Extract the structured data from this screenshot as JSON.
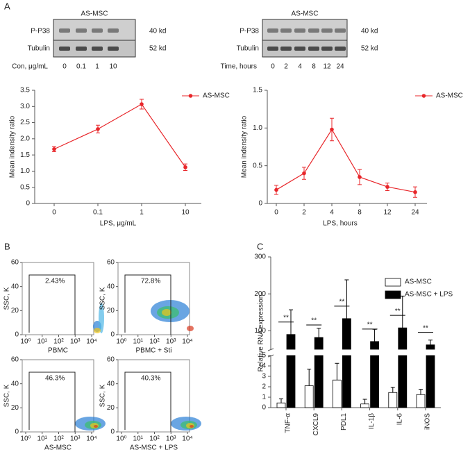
{
  "panel_labels": [
    "A",
    "B",
    "C"
  ],
  "blots": [
    {
      "title": "AS-MSC",
      "rows": [
        "P-P38",
        "Tubulin"
      ],
      "sizes": [
        "40 kd",
        "52 kd"
      ],
      "lane_title": "Con, μg/mL",
      "lanes": [
        "0",
        "0.1",
        "1",
        "10"
      ]
    },
    {
      "title": "AS-MSC",
      "rows": [
        "P-P38",
        "Tubulin"
      ],
      "sizes": [
        "40 kd",
        "52 kd"
      ],
      "lane_title": "Time, hours",
      "lanes": [
        "0",
        "2",
        "4",
        "8",
        "12",
        "24"
      ]
    }
  ],
  "chart_data": [
    {
      "type": "line",
      "xlabel": "LPS, μg/mL",
      "ylabel": "Mean indensity ratio",
      "categories": [
        "0",
        "0.1",
        "1",
        "10"
      ],
      "series": [
        {
          "name": "AS-MSC",
          "color": "#e8262a",
          "values": [
            1.68,
            2.3,
            3.07,
            1.12
          ],
          "errors": [
            0.08,
            0.12,
            0.15,
            0.1
          ]
        }
      ],
      "ylim": [
        0,
        3.5
      ],
      "yticks": [
        0,
        0.5,
        {
          "value": 1,
          "label": "1.0"
        },
        1.5,
        {
          "value": 2,
          "label": "2.0"
        },
        2.5,
        {
          "value": 3,
          "label": "3.0"
        },
        3.5
      ]
    },
    {
      "type": "line",
      "xlabel": "LPS, hours",
      "ylabel": "Mean indensity ratio",
      "categories": [
        "0",
        "2",
        "4",
        "8",
        "12",
        "24"
      ],
      "series": [
        {
          "name": "AS-MSC",
          "color": "#e8262a",
          "values": [
            0.18,
            0.4,
            0.98,
            0.35,
            0.22,
            0.15
          ],
          "errors": [
            0.06,
            0.08,
            0.15,
            0.1,
            0.05,
            0.07
          ]
        }
      ],
      "ylim": [
        0,
        1.5
      ],
      "yticks": [
        0,
        0.5,
        {
          "value": 1,
          "label": "1.0"
        },
        1.5
      ]
    },
    {
      "type": "bar",
      "ylabel": "Relative RNA expression",
      "categories": [
        "TNF-α",
        "CXCL9",
        "PDL1",
        "IL-1β",
        "IL-6",
        "iNOS"
      ],
      "series": [
        {
          "name": "AS-MSC",
          "color": "#ffffff",
          "values": [
            0.45,
            2.1,
            2.65,
            0.35,
            1.45,
            1.25
          ],
          "errors": [
            0.4,
            1.6,
            1.6,
            0.45,
            0.5,
            0.5
          ]
        },
        {
          "name": "AS-MSC + LPS",
          "color": "#000000",
          "values": [
            90,
            82,
            133,
            71,
            108,
            62
          ],
          "errors": [
            67,
            25,
            105,
            33,
            86,
            13
          ]
        }
      ],
      "ylim": [
        0,
        5
      ],
      "yticks": [
        0,
        1,
        2,
        3,
        4,
        5
      ],
      "ylim_upper": [
        50,
        300
      ],
      "yticks_upper": [
        100,
        200,
        300
      ],
      "annotations": [
        "**",
        "**",
        "**",
        "**",
        "**",
        "**"
      ]
    }
  ],
  "flow_panels": {
    "ylabel": "SSC, K",
    "ylim": [
      0,
      60
    ],
    "yticks": [
      0,
      20,
      40,
      60
    ],
    "xlim": [
      0,
      4
    ],
    "xticks": [
      {
        "value": 0,
        "label": "10⁰"
      },
      {
        "value": 1,
        "label": "10¹"
      },
      {
        "value": 2,
        "label": "10²"
      },
      {
        "value": 3,
        "label": "10³"
      },
      {
        "value": 4,
        "label": "10⁴"
      }
    ],
    "panels": [
      {
        "xlabel": "PBMC",
        "gate": "2.43%"
      },
      {
        "xlabel": "PBMC + Sti",
        "gate": "72.8%"
      },
      {
        "xlabel": "AS-MSC",
        "gate": "46.3%"
      },
      {
        "xlabel": "AS-MSC + LPS",
        "gate": "40.3%"
      }
    ]
  }
}
